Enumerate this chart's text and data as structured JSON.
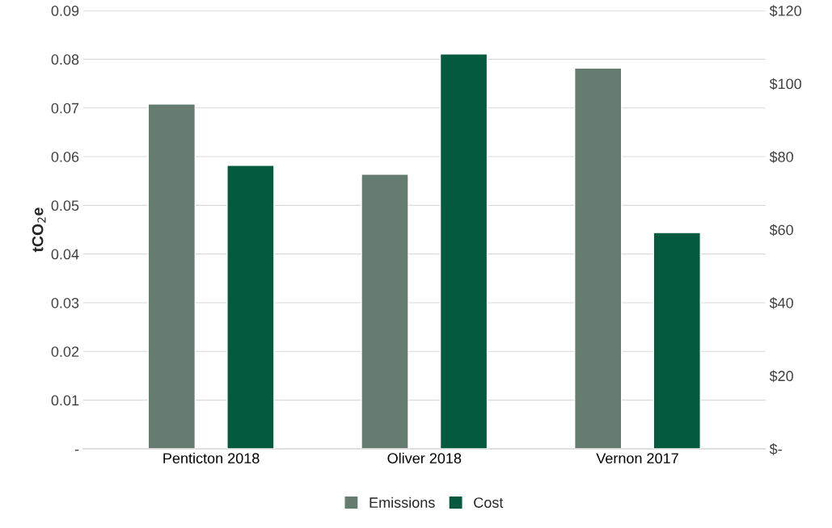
{
  "chart_data": {
    "type": "bar",
    "ylabel": "tCO$_{2}$e",
    "categories": [
      "Penticton 2018",
      "Oliver 2018",
      "Vernon 2017"
    ],
    "series": [
      {
        "name": "Emissions",
        "color": "#667c71",
        "values": [
          0.0708,
          0.0564,
          0.0782
        ]
      },
      {
        "name": "Cost",
        "color": "#045a3f",
        "values": [
          77.6,
          108.1,
          59.2
        ],
        "axis": "y2"
      }
    ],
    "ylim": [
      0,
      0.09
    ],
    "yticks": [
      {
        "value": 0,
        "label": "-"
      },
      0.01,
      0.02,
      0.03,
      0.04,
      0.05,
      0.06,
      0.07,
      0.08,
      0.09
    ],
    "y2lim": [
      0,
      120
    ],
    "y2ticks": [
      {
        "value": 0,
        "label": "$-"
      },
      {
        "value": 20,
        "label": "$20"
      },
      {
        "value": 40,
        "label": "$40"
      },
      {
        "value": 60,
        "label": "$60"
      },
      {
        "value": 80,
        "label": "$80"
      },
      {
        "value": 100,
        "label": "$100"
      },
      {
        "value": 120,
        "label": "$120"
      }
    ],
    "grid": "y",
    "legend": "bottom"
  }
}
